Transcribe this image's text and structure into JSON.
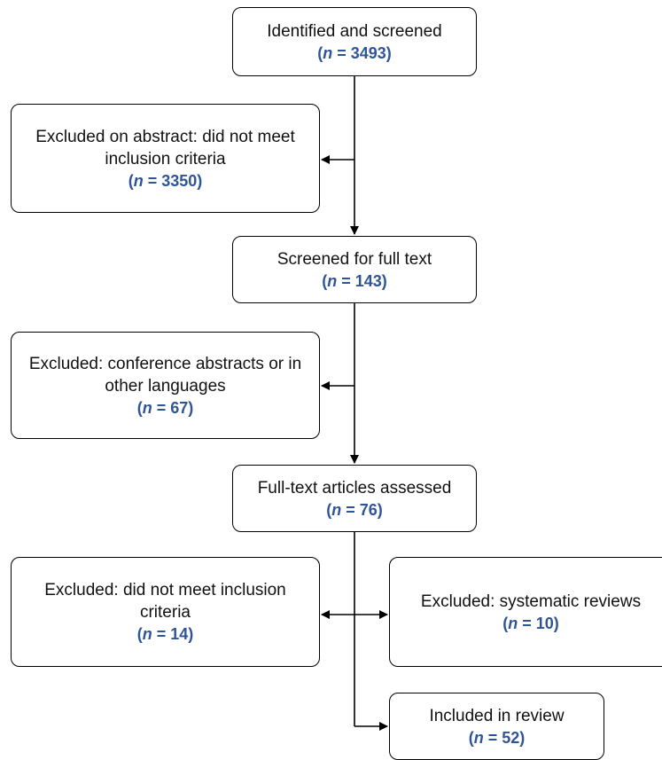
{
  "nodes": {
    "identified": {
      "label": "Identified and screened",
      "n": "3493"
    },
    "excluded_abstract": {
      "label": "Excluded on abstract: did not meet inclusion criteria",
      "n": "3350"
    },
    "screened_full_text": {
      "label": "Screened for full text",
      "n": "143"
    },
    "excluded_conference": {
      "label": "Excluded: conference abstracts or in other languages",
      "n": "67"
    },
    "assessed": {
      "label": "Full-text articles assessed",
      "n": "76"
    },
    "excluded_criteria": {
      "label": "Excluded: did not meet inclusion criteria",
      "n": "14"
    },
    "excluded_systematic": {
      "label": "Excluded: systematic reviews",
      "n": "10"
    },
    "included": {
      "label": "Included in review",
      "n": "52"
    }
  },
  "count_prefix": "n",
  "count_equals": " = ",
  "count_open": "(",
  "count_close": ")",
  "colors": {
    "count_text": "#2f5597",
    "box_border": "#000000",
    "arrow": "#000000"
  }
}
